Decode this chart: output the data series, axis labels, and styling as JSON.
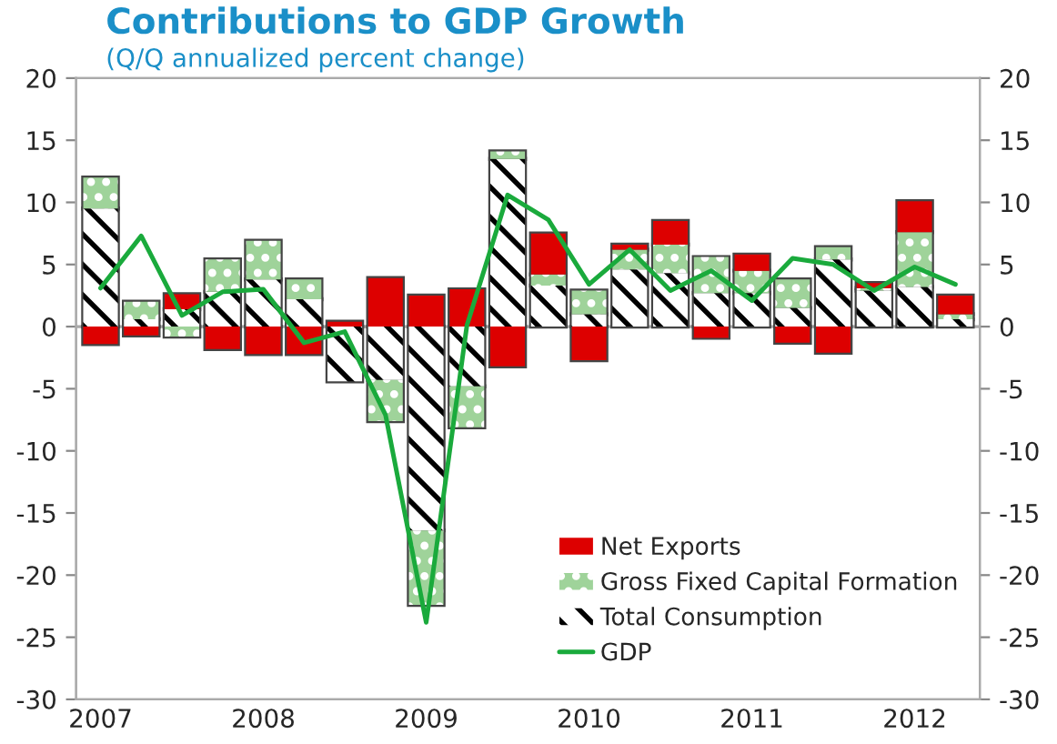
{
  "chart_data": {
    "type": "bar",
    "title": "Contributions to GDP Growth",
    "subtitle": "(Q/Q annualized percent change)",
    "categories": [
      "2007",
      null,
      null,
      null,
      "2008",
      null,
      null,
      null,
      "2009",
      null,
      null,
      null,
      "2010",
      null,
      null,
      null,
      "2011",
      null,
      null,
      null,
      "2012",
      null
    ],
    "stacked": true,
    "series": [
      {
        "name": "Total Consumption",
        "color": "#000000",
        "values": [
          9.5,
          0.6,
          1.4,
          2.8,
          3.8,
          2.2,
          -4.4,
          -4.3,
          -16.4,
          -4.8,
          13.5,
          3.3,
          1.0,
          4.6,
          4.3,
          2.7,
          2.7,
          1.5,
          5.4,
          2.9,
          3.2,
          0.6
        ]
      },
      {
        "name": "Gross Fixed Capital Formation",
        "color": "#9fd39a",
        "values": [
          2.5,
          1.4,
          -0.8,
          2.6,
          3.1,
          1.6,
          0,
          -3.3,
          -6.0,
          -3.3,
          0.6,
          0.9,
          1.9,
          1.6,
          2.3,
          2.9,
          1.8,
          2.3,
          1.0,
          0.2,
          4.4,
          0.4
        ]
      },
      {
        "name": "Net Exports",
        "color": "#dd0000",
        "values": [
          -1.4,
          -0.7,
          1.2,
          -1.8,
          -2.2,
          -2.2,
          0.4,
          3.9,
          2.5,
          3.0,
          -3.2,
          3.3,
          -2.7,
          0.4,
          1.9,
          -0.9,
          1.3,
          -1.3,
          -2.1,
          0.4,
          2.5,
          1.5
        ]
      },
      {
        "name": "GDP",
        "type": "line",
        "color": "#1aaa3c",
        "values": [
          3.1,
          7.3,
          0.9,
          2.8,
          3.0,
          -1.3,
          -0.4,
          -7.1,
          -23.8,
          0.1,
          10.6,
          8.6,
          3.4,
          6.2,
          2.9,
          4.5,
          2.1,
          5.5,
          5.0,
          2.9,
          4.8,
          3.4
        ]
      }
    ],
    "ylim": [
      -30,
      20
    ],
    "yticks": [
      -30,
      -25,
      -20,
      -15,
      -10,
      -5,
      0,
      5,
      10,
      15,
      20
    ],
    "y2lim": [
      -30,
      20
    ],
    "y2ticks": [
      -30,
      -25,
      -20,
      -15,
      -10,
      -5,
      0,
      5,
      10,
      15,
      20
    ],
    "ref_lines": [
      {
        "axis": "y",
        "value": 0,
        "color": "#aaaaaa"
      }
    ],
    "legend": "bottom right",
    "grid": false
  }
}
